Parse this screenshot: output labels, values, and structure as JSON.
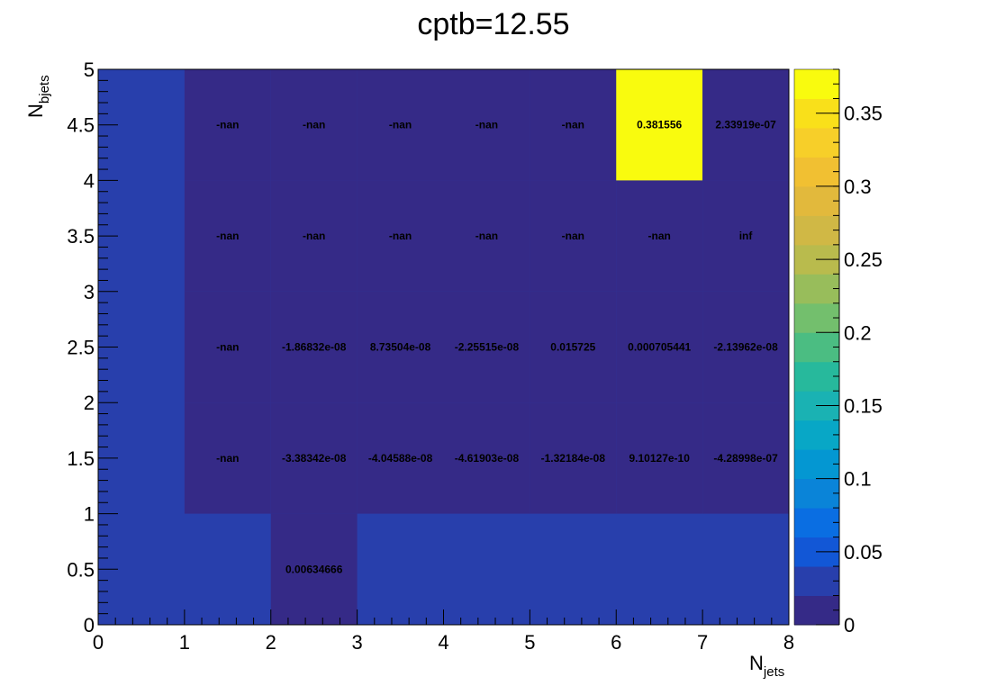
{
  "chart_data": {
    "type": "heatmap",
    "title": "cptb=12.55",
    "xlabel": {
      "main": "N",
      "sub": "jets"
    },
    "ylabel": {
      "main": "N",
      "sub": "bjets"
    },
    "xlim": [
      0,
      8
    ],
    "ylim": [
      0,
      5
    ],
    "x_ticks": [
      "0",
      "1",
      "2",
      "3",
      "4",
      "5",
      "6",
      "7",
      "8"
    ],
    "y_ticks": [
      "0",
      "0.5",
      "1",
      "1.5",
      "2",
      "2.5",
      "3",
      "3.5",
      "4",
      "4.5",
      "5"
    ],
    "x_bins": [
      [
        0,
        1
      ],
      [
        1,
        2
      ],
      [
        2,
        3
      ],
      [
        3,
        4
      ],
      [
        4,
        5
      ],
      [
        5,
        6
      ],
      [
        6,
        7
      ],
      [
        7,
        8
      ]
    ],
    "y_bins": [
      [
        0,
        1
      ],
      [
        1,
        2
      ],
      [
        2,
        3
      ],
      [
        3,
        4
      ],
      [
        4,
        5
      ]
    ],
    "z_range": [
      0,
      0.38
    ],
    "colorbar_ticks": [
      "0",
      "0.05",
      "0.1",
      "0.15",
      "0.2",
      "0.25",
      "0.3",
      "0.35"
    ],
    "palette": [
      "#352a87",
      "#283fac",
      "#1257d6",
      "#0a6ee2",
      "#0a84d8",
      "#0497d2",
      "#08a7c6",
      "#1ab2b3",
      "#27b99c",
      "#4bbd82",
      "#73bf6d",
      "#98bd5b",
      "#b9bb4d",
      "#d0b845",
      "#e2b93c",
      "#f1c032",
      "#f7cf29",
      "#f9e01a",
      "#f9fb0e"
    ],
    "nan_color": "#352a87",
    "cells": [
      {
        "x": 2,
        "y": 0,
        "value": 0.00634666,
        "label": "0.00634666"
      },
      {
        "x": 1,
        "y": 1,
        "value": null,
        "label": "-nan"
      },
      {
        "x": 2,
        "y": 1,
        "value": -3.38342e-08,
        "label": "-3.38342e-08"
      },
      {
        "x": 3,
        "y": 1,
        "value": -4.04588e-08,
        "label": "-4.04588e-08"
      },
      {
        "x": 4,
        "y": 1,
        "value": -4.61903e-08,
        "label": "-4.61903e-08"
      },
      {
        "x": 5,
        "y": 1,
        "value": -1.32184e-08,
        "label": "-1.32184e-08"
      },
      {
        "x": 6,
        "y": 1,
        "value": 9.10127e-10,
        "label": "9.10127e-10"
      },
      {
        "x": 7,
        "y": 1,
        "value": -4.28998e-07,
        "label": "-4.28998e-07"
      },
      {
        "x": 1,
        "y": 2,
        "value": null,
        "label": "-nan"
      },
      {
        "x": 2,
        "y": 2,
        "value": -1.86832e-08,
        "label": "-1.86832e-08"
      },
      {
        "x": 3,
        "y": 2,
        "value": 8.73504e-08,
        "label": "8.73504e-08"
      },
      {
        "x": 4,
        "y": 2,
        "value": -2.25515e-08,
        "label": "-2.25515e-08"
      },
      {
        "x": 5,
        "y": 2,
        "value": 0.015725,
        "label": "0.015725"
      },
      {
        "x": 6,
        "y": 2,
        "value": 0.000705441,
        "label": "0.000705441"
      },
      {
        "x": 7,
        "y": 2,
        "value": -2.13962e-08,
        "label": "-2.13962e-08"
      },
      {
        "x": 1,
        "y": 3,
        "value": null,
        "label": "-nan"
      },
      {
        "x": 2,
        "y": 3,
        "value": null,
        "label": "-nan"
      },
      {
        "x": 3,
        "y": 3,
        "value": null,
        "label": "-nan"
      },
      {
        "x": 4,
        "y": 3,
        "value": null,
        "label": "-nan"
      },
      {
        "x": 5,
        "y": 3,
        "value": null,
        "label": "-nan"
      },
      {
        "x": 6,
        "y": 3,
        "value": null,
        "label": "-nan"
      },
      {
        "x": 7,
        "y": 3,
        "value": null,
        "label": "inf"
      },
      {
        "x": 1,
        "y": 4,
        "value": null,
        "label": "-nan"
      },
      {
        "x": 2,
        "y": 4,
        "value": null,
        "label": "-nan"
      },
      {
        "x": 3,
        "y": 4,
        "value": null,
        "label": "-nan"
      },
      {
        "x": 4,
        "y": 4,
        "value": null,
        "label": "-nan"
      },
      {
        "x": 5,
        "y": 4,
        "value": null,
        "label": "-nan"
      },
      {
        "x": 6,
        "y": 4,
        "value": 0.381556,
        "label": "0.381556"
      },
      {
        "x": 7,
        "y": 4,
        "value": 2.33919e-07,
        "label": "2.33919e-07"
      }
    ]
  }
}
